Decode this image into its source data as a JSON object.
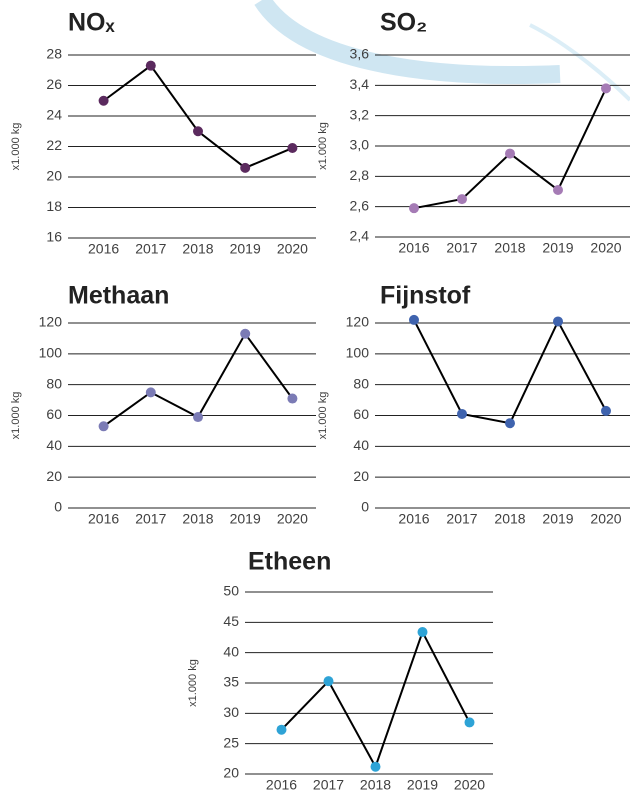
{
  "chart_data": [
    {
      "type": "line",
      "title": "NOₓ",
      "ylabel": "x1.000 kg",
      "categories": [
        "2016",
        "2017",
        "2018",
        "2019",
        "2020"
      ],
      "series": [
        {
          "color": "#5b2a5e",
          "values": [
            25,
            27.3,
            23,
            20.6,
            21.9
          ]
        }
      ],
      "ylim": [
        16,
        28
      ],
      "yticks": [
        16,
        18,
        20,
        22,
        24,
        26,
        28
      ],
      "grid": true
    },
    {
      "type": "line",
      "title": "SO₂",
      "ylabel": "x1.000 kg",
      "categories": [
        "2016",
        "2017",
        "2018",
        "2019",
        "2020"
      ],
      "series": [
        {
          "color": "#a57bb5",
          "values": [
            2.59,
            2.65,
            2.95,
            2.71,
            3.38
          ]
        }
      ],
      "ylim": [
        2.4,
        3.6
      ],
      "yticks": [
        {
          "value": 2.4,
          "label": "2,4"
        },
        {
          "value": 2.6,
          "label": "2,6"
        },
        {
          "value": 2.8,
          "label": "2,8"
        },
        {
          "value": 3.0,
          "label": "3,0"
        },
        {
          "value": 3.2,
          "label": "3,2"
        },
        {
          "value": 3.4,
          "label": "3,4"
        },
        {
          "value": 3.6,
          "label": "3,6"
        }
      ],
      "grid": true
    },
    {
      "type": "line",
      "title": "Methaan",
      "ylabel": "x1.000 kg",
      "categories": [
        "2016",
        "2017",
        "2018",
        "2019",
        "2020"
      ],
      "series": [
        {
          "color": "#7b7bb5",
          "values": [
            53,
            75,
            59,
            113,
            71
          ]
        }
      ],
      "ylim": [
        0,
        120
      ],
      "yticks": [
        0,
        20,
        40,
        60,
        80,
        100,
        120
      ],
      "grid": true
    },
    {
      "type": "line",
      "title": "Fijnstof",
      "ylabel": "x1.000 kg",
      "categories": [
        "2016",
        "2017",
        "2018",
        "2019",
        "2020"
      ],
      "series": [
        {
          "color": "#3f63ae",
          "values": [
            122,
            61,
            55,
            121,
            63
          ]
        }
      ],
      "ylim": [
        0,
        120
      ],
      "yticks": [
        0,
        20,
        40,
        60,
        80,
        100,
        120
      ],
      "grid": true
    },
    {
      "type": "line",
      "title": "Etheen",
      "ylabel": "x1.000 kg",
      "categories": [
        "2016",
        "2017",
        "2018",
        "2019",
        "2020"
      ],
      "series": [
        {
          "color": "#2ea3d6",
          "values": [
            27.3,
            35.3,
            21.2,
            43.4,
            28.5
          ]
        }
      ],
      "ylim": [
        20,
        50
      ],
      "yticks": [
        20,
        25,
        30,
        35,
        40,
        45,
        50
      ],
      "grid": true
    }
  ]
}
